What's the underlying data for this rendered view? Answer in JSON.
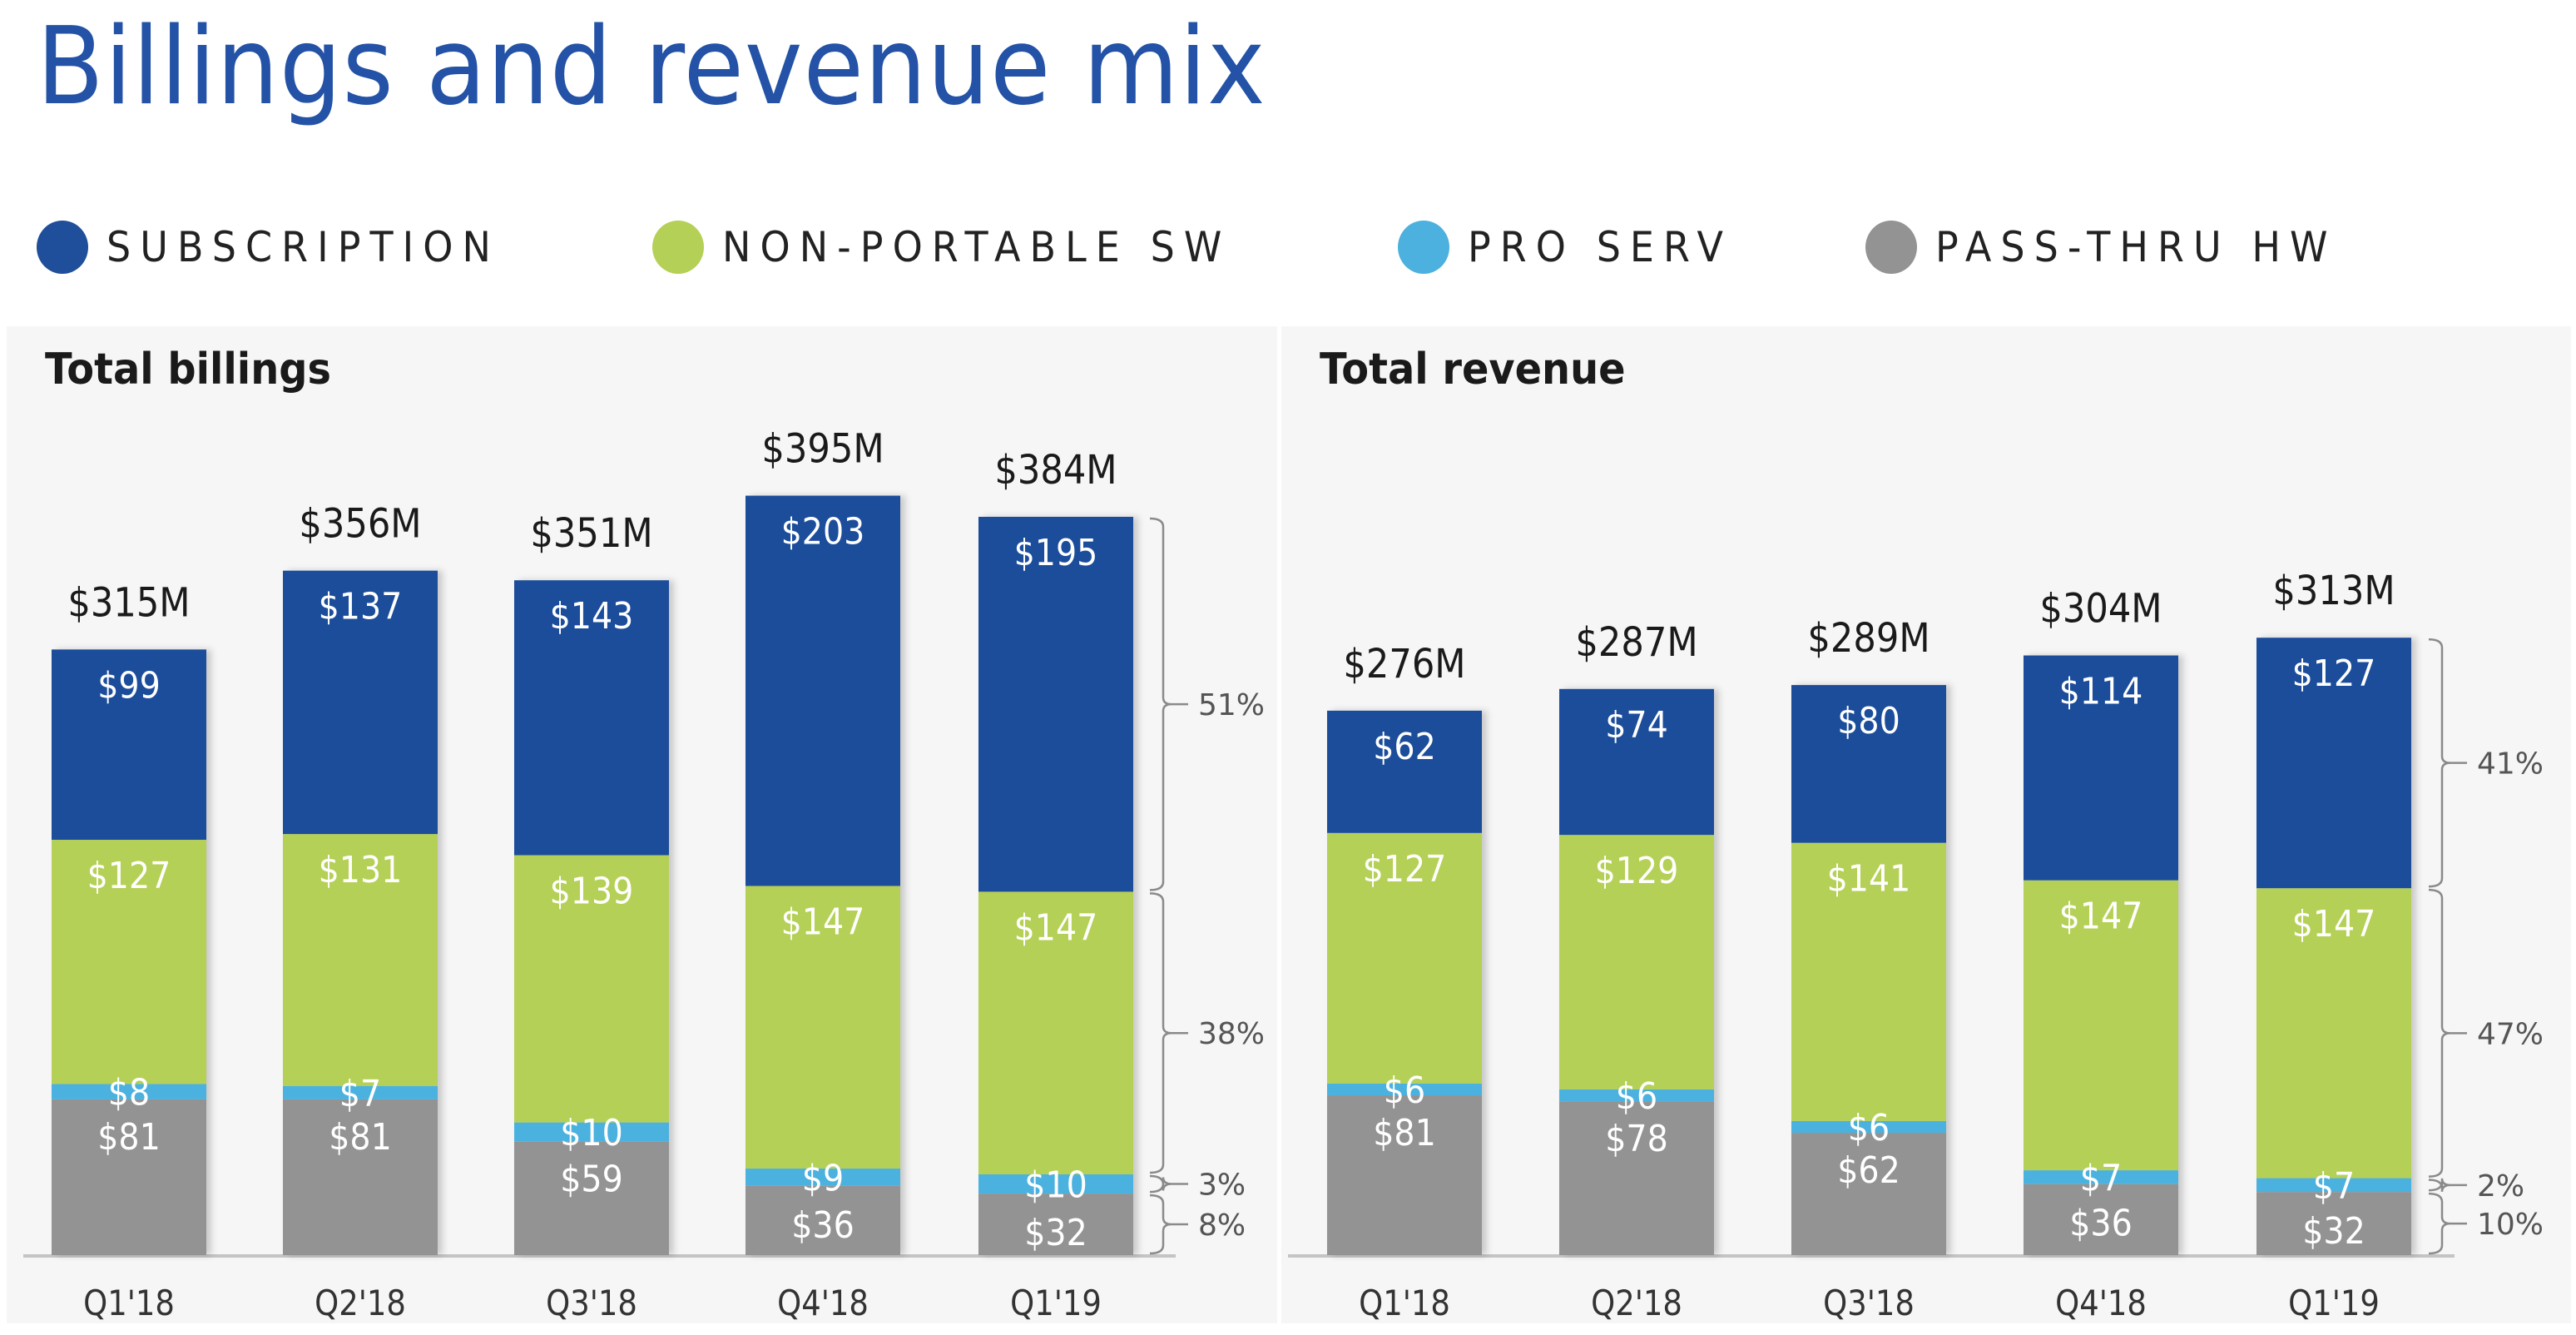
{
  "page": {
    "title": "Billings and revenue mix",
    "title_color": "#2352a6"
  },
  "legend": [
    {
      "label": "SUBSCRIPTION",
      "color": "#1f4e9b"
    },
    {
      "label": "NON-PORTABLE SW",
      "color": "#b5d056"
    },
    {
      "label": "PRO SERV",
      "color": "#4cb1de"
    },
    {
      "label": "PASS-THRU HW",
      "color": "#939393"
    }
  ],
  "chart_data": [
    {
      "type": "bar",
      "stacked": true,
      "title": "Total billings",
      "categories": [
        "Q1'18",
        "Q2'18",
        "Q3'18",
        "Q4'18",
        "Q1'19"
      ],
      "totals": [
        315,
        356,
        351,
        395,
        384
      ],
      "total_labels": [
        "$315M",
        "$356M",
        "$351M",
        "$395M",
        "$384M"
      ],
      "unit": "$M",
      "series": [
        {
          "name": "PASS-THRU HW",
          "color": "#939393",
          "values": [
            81,
            81,
            59,
            36,
            32
          ],
          "labels": [
            "$81",
            "$81",
            "$59",
            "$36",
            "$32"
          ]
        },
        {
          "name": "PRO SERV",
          "color": "#4cb1de",
          "values": [
            8,
            7,
            10,
            9,
            10
          ],
          "labels": [
            "$8",
            "$7",
            "$10",
            "$9",
            "$10"
          ]
        },
        {
          "name": "NON-PORTABLE SW",
          "color": "#b5d056",
          "values": [
            127,
            131,
            139,
            147,
            147
          ],
          "labels": [
            "$127",
            "$131",
            "$139",
            "$147",
            "$147"
          ]
        },
        {
          "name": "SUBSCRIPTION",
          "color": "#1f4e9b",
          "values": [
            99,
            137,
            143,
            203,
            195
          ],
          "labels": [
            "$99",
            "$137",
            "$143",
            "$203",
            "$195"
          ]
        }
      ],
      "mix_annotations": [
        {
          "series": "SUBSCRIPTION",
          "label": "51%"
        },
        {
          "series": "NON-PORTABLE SW",
          "label": "38%"
        },
        {
          "series": "PRO SERV",
          "label": "3%"
        },
        {
          "series": "PASS-THRU HW",
          "label": "8%"
        }
      ],
      "annotation_period": "Q1'19",
      "ylim": [
        0,
        420
      ],
      "grid": false,
      "legend_position": "top"
    },
    {
      "type": "bar",
      "stacked": true,
      "title": "Total revenue",
      "categories": [
        "Q1'18",
        "Q2'18",
        "Q3'18",
        "Q4'18",
        "Q1'19"
      ],
      "totals": [
        276,
        287,
        289,
        304,
        313
      ],
      "total_labels": [
        "$276M",
        "$287M",
        "$289M",
        "$304M",
        "$313M"
      ],
      "unit": "$M",
      "series": [
        {
          "name": "PASS-THRU HW",
          "color": "#939393",
          "values": [
            81,
            78,
            62,
            36,
            32
          ],
          "labels": [
            "$81",
            "$78",
            "$62",
            "$36",
            "$32"
          ]
        },
        {
          "name": "PRO SERV",
          "color": "#4cb1de",
          "values": [
            6,
            6,
            6,
            7,
            7
          ],
          "labels": [
            "$6",
            "$6",
            "$6",
            "$7",
            "$7"
          ]
        },
        {
          "name": "NON-PORTABLE SW",
          "color": "#b5d056",
          "values": [
            127,
            129,
            141,
            147,
            147
          ],
          "labels": [
            "$127",
            "$129",
            "$141",
            "$147",
            "$147"
          ]
        },
        {
          "name": "SUBSCRIPTION",
          "color": "#1f4e9b",
          "values": [
            62,
            74,
            80,
            114,
            127
          ],
          "labels": [
            "$62",
            "$74",
            "$80",
            "$114",
            "$127"
          ]
        }
      ],
      "mix_annotations": [
        {
          "series": "SUBSCRIPTION",
          "label": "41%"
        },
        {
          "series": "NON-PORTABLE SW",
          "label": "47%"
        },
        {
          "series": "PRO SERV",
          "label": "2%"
        },
        {
          "series": "PASS-THRU HW",
          "label": "10%"
        }
      ],
      "annotation_period": "Q1'19",
      "ylim": [
        0,
        340
      ],
      "grid": false,
      "legend_position": "top"
    }
  ]
}
